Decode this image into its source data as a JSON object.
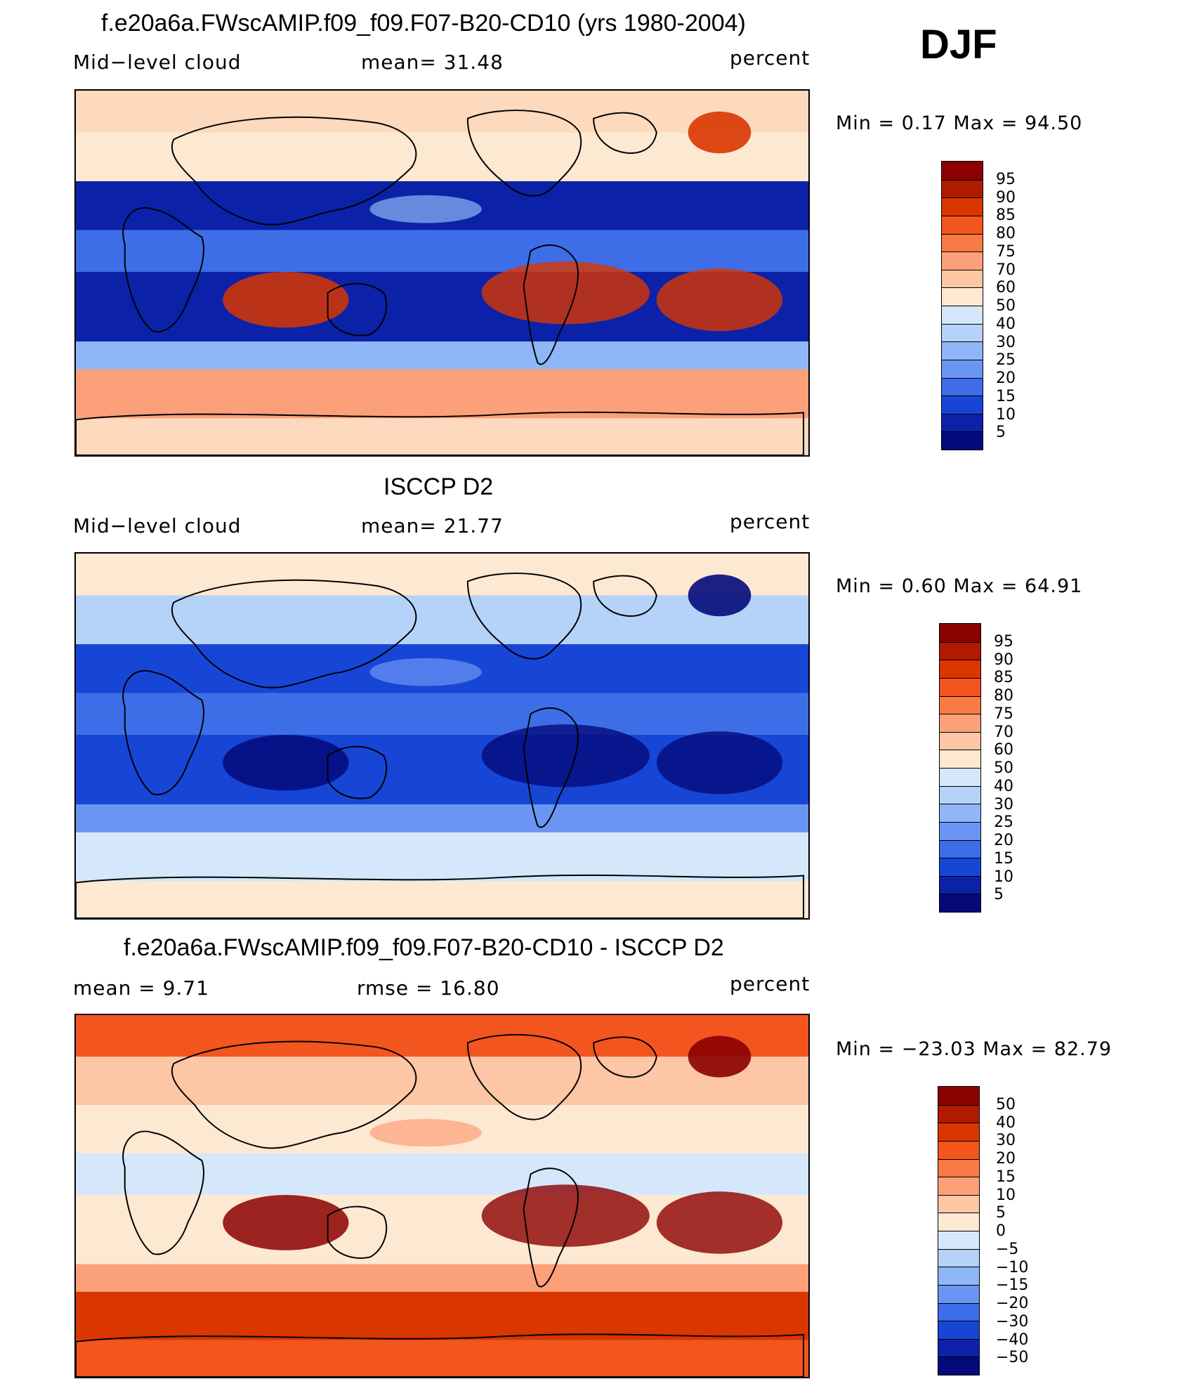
{
  "header": {
    "season": "DJF"
  },
  "panels": [
    {
      "id": "model",
      "title": "f.e20a6a.FWscAMIP.f09_f09.F07-B20-CD10 (yrs 1980-2004)",
      "left_label": "Mid−level  cloud",
      "center_label": "mean=   31.48",
      "units": "percent",
      "minmax": "Min  =     0.17  Max  =    94.50",
      "colorbar": {
        "labels": [
          "95",
          "90",
          "85",
          "80",
          "75",
          "70",
          "60",
          "50",
          "40",
          "30",
          "25",
          "20",
          "15",
          "10",
          "5"
        ],
        "colors": [
          "#8b0000",
          "#b01a00",
          "#d93600",
          "#f2551e",
          "#fa7a45",
          "#fca079",
          "#fdc6a4",
          "#fde8d2",
          "#d5e7fb",
          "#b5d2f9",
          "#8fb6f7",
          "#6b95f2",
          "#3d6ee8",
          "#1746d6",
          "#0b22a8",
          "#040a7a"
        ]
      },
      "map_colors": {
        "ocean_band": "#0b22a8",
        "tropics": "#3d6ee8",
        "subtropics": "#8fb6f7",
        "midlat": "#fde8d2",
        "storm": "#fca079",
        "polar": "#fdd9bd",
        "high": "#d93600"
      }
    },
    {
      "id": "obs",
      "title": "ISCCP D2",
      "left_label": "Mid−level  cloud",
      "center_label": "mean=   21.77",
      "units": "percent",
      "minmax": "Min  =     0.60  Max  =    64.91",
      "colorbar": {
        "labels": [
          "95",
          "90",
          "85",
          "80",
          "75",
          "70",
          "60",
          "50",
          "40",
          "30",
          "25",
          "20",
          "15",
          "10",
          "5"
        ],
        "colors": [
          "#8b0000",
          "#b01a00",
          "#d93600",
          "#f2551e",
          "#fa7a45",
          "#fca079",
          "#fdc6a4",
          "#fde8d2",
          "#d5e7fb",
          "#b5d2f9",
          "#8fb6f7",
          "#6b95f2",
          "#3d6ee8",
          "#1746d6",
          "#0b22a8",
          "#040a7a"
        ]
      },
      "map_colors": {
        "ocean_band": "#1746d6",
        "tropics": "#3d6ee8",
        "subtropics": "#6b95f2",
        "midlat": "#b5d2f9",
        "storm": "#d5e7fb",
        "polar": "#fde8d2",
        "high": "#040a7a"
      }
    },
    {
      "id": "diff",
      "title": "f.e20a6a.FWscAMIP.f09_f09.F07-B20-CD10 - ISCCP D2",
      "left_label": "mean  =     9.71",
      "center_label": "rmse  =    16.80",
      "units": "percent",
      "minmax": "Min  = −23.03  Max  =    82.79",
      "colorbar": {
        "labels": [
          "50",
          "40",
          "30",
          "20",
          "15",
          "10",
          "5",
          "0",
          "−5",
          "−10",
          "−15",
          "−20",
          "−30",
          "−40",
          "−50"
        ],
        "colors": [
          "#8b0000",
          "#b01a00",
          "#d93600",
          "#f2551e",
          "#fa7a45",
          "#fca079",
          "#fdc6a4",
          "#fde8d2",
          "#d5e7fb",
          "#b5d2f9",
          "#8fb6f7",
          "#6b95f2",
          "#3d6ee8",
          "#1746d6",
          "#0b22a8",
          "#040a7a"
        ]
      },
      "map_colors": {
        "ocean_band": "#fde8d2",
        "tropics": "#d5e7fb",
        "subtropics": "#fca079",
        "midlat": "#fdc6a4",
        "storm": "#d93600",
        "polar": "#f2551e",
        "high": "#8b0000"
      }
    }
  ]
}
